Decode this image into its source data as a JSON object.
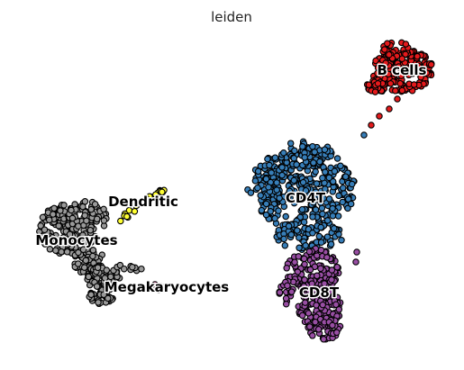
{
  "chart_data": {
    "type": "scatter",
    "title": "leiden",
    "xlabel": "",
    "ylabel": "",
    "grid": false,
    "legend": "on data",
    "point_colors": {
      "B cells": "#e41a1c",
      "CD4T": "#377eb8",
      "CD8T": "#984ea3",
      "Dendritic": "#ffff33",
      "Monocytes": "#999999",
      "Megakaryocytes": "#f781bf"
    },
    "clusters": [
      {
        "name": "B cells",
        "label": "B cells",
        "color": "#e41a1c"
      },
      {
        "name": "CD4T",
        "label": "CD4T",
        "color": "#377eb8"
      },
      {
        "name": "CD8T",
        "label": "CD8T",
        "color": "#984ea3"
      },
      {
        "name": "Dendritic",
        "label": "Dendritic",
        "color": "#ffff33"
      },
      {
        "name": "Monocytes",
        "label": "Monocytes",
        "color": "#999999"
      },
      {
        "name": "Megakaryocytes",
        "label": "Megakaryocytes",
        "color": "#f781bf"
      }
    ]
  }
}
